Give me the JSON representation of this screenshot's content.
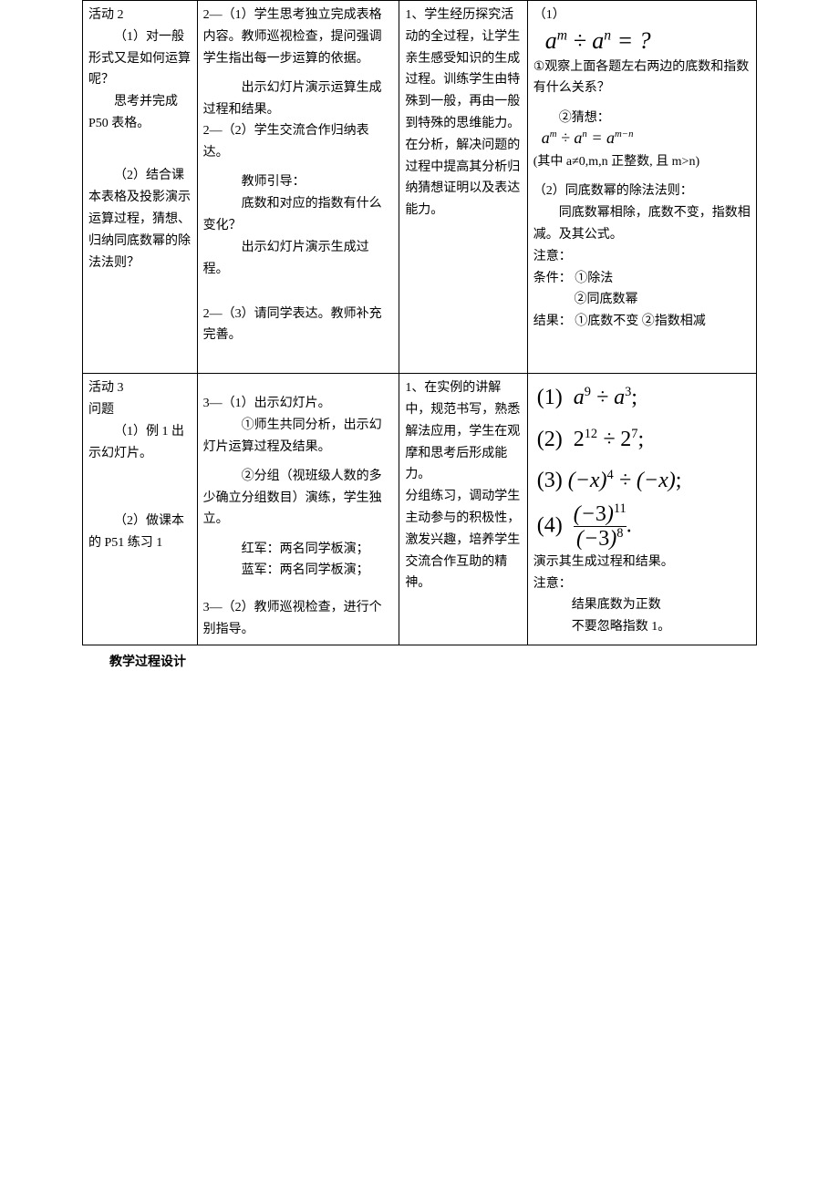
{
  "table": {
    "rows": [
      {
        "c1": {
          "lines": [
            {
              "t": "活动 2",
              "cls": ""
            },
            {
              "t": "（1）对一般形式又是如何运算呢？",
              "cls": "indent"
            },
            {
              "t": "思考并完成P50 表格。",
              "cls": "indent"
            },
            {
              "t": "",
              "cls": "sp"
            },
            {
              "t": "",
              "cls": "sp"
            },
            {
              "t": "",
              "cls": "sp"
            },
            {
              "t": "（2）结合课本表格及投影演示运算过程，猜想、归纳同底数幂的除法法则？",
              "cls": "indent"
            }
          ]
        },
        "c2": {
          "lines": [
            {
              "t": "2—（1）学生思考独立完成表格内容。教师巡视检查，提问强调学生指出每一步运算的依据。",
              "cls": ""
            },
            {
              "t": "",
              "cls": "sp"
            },
            {
              "t": "出示幻灯片演示运算生成过程和结果。",
              "cls": "indent3"
            },
            {
              "t": "2—（2）学生交流合作归纳表达。",
              "cls": ""
            },
            {
              "t": "",
              "cls": "sp"
            },
            {
              "t": "教师引导：",
              "cls": "indent3"
            },
            {
              "t": "底数和对应的指数有什么变化？",
              "cls": "indent3"
            },
            {
              "t": "出示幻灯片演示生成过程。",
              "cls": "indent3"
            },
            {
              "t": "",
              "cls": "sp"
            },
            {
              "t": "",
              "cls": "sp"
            },
            {
              "t": "2—（3）请同学表达。教师补充完善。",
              "cls": ""
            }
          ]
        },
        "c3": {
          "lines": [
            {
              "t": "1、学生经历探究活动的全过程，让学生亲生感受知识的生成过程。训练学生由特殊到一般，再由一般到特殊的思维能力。在分析，解决问题的过程中提高其分析归纳猜想证明以及表达能力。",
              "cls": ""
            }
          ]
        },
        "c4": {
          "kind": "row1",
          "eq1_label": "（1）",
          "eq1": "a^m ÷ a^n = ?",
          "obs": "①观察上面各题左右两边的底数和指数有什么关系？",
          "guess_label": "②猜想：",
          "eq2": "a^m ÷ a^n = a^(m−n)",
          "cond": "(其中 a≠0,m,n 正整数, 且 m>n)",
          "rule_title": "（2）同底数幂的除法法则：",
          "rule_body": "同底数幂相除，底数不变，指数相减。及其公式。",
          "note_title": "注意：",
          "note1": "条件： ①除法",
          "note1b": "②同底数幂",
          "note2": "结果： ①底数不变    ②指数相减"
        }
      },
      {
        "c1": {
          "lines": [
            {
              "t": "活动 3",
              "cls": ""
            },
            {
              "t": "问题",
              "cls": ""
            },
            {
              "t": "（1）例 1 出示幻灯片。",
              "cls": "indent"
            },
            {
              "t": "",
              "cls": "sp"
            },
            {
              "t": "",
              "cls": "sp"
            },
            {
              "t": "",
              "cls": "sp"
            },
            {
              "t": "",
              "cls": "sp"
            },
            {
              "t": "",
              "cls": "sp"
            },
            {
              "t": "（2）做课本的 P51 练习 1",
              "cls": "indent"
            }
          ]
        },
        "c2": {
          "lines": [
            {
              "t": "",
              "cls": "sp"
            },
            {
              "t": "3—（1）出示幻灯片。",
              "cls": ""
            },
            {
              "t": "①师生共同分析，出示幻灯片运算过程及结果。",
              "cls": "indent3"
            },
            {
              "t": "",
              "cls": "sp"
            },
            {
              "t": "②分组（视班级人数的多少确立分组数目）演练，学生独立。",
              "cls": "indent3"
            },
            {
              "t": "",
              "cls": "sp"
            },
            {
              "t": "红军：两名同学板演；",
              "cls": "indent3"
            },
            {
              "t": "蓝军：两名同学板演；",
              "cls": "indent3"
            },
            {
              "t": "",
              "cls": "sp"
            },
            {
              "t": "",
              "cls": "sp"
            },
            {
              "t": "3—（2）教师巡视检查，进行个别指导。",
              "cls": ""
            }
          ]
        },
        "c3": {
          "lines": [
            {
              "t": "1、在实例的讲解中，规范书写，熟悉解法应用，学生在观摩和思考后形成能力。",
              "cls": ""
            },
            {
              "t": "分组练习，调动学生主动参与的积极性，激发兴趣，培养学生交流合作互助的精神。",
              "cls": ""
            }
          ]
        },
        "c4": {
          "kind": "row2",
          "items": [
            "(1)  a⁹ ÷ a³;",
            "(2)  2¹² ÷ 2⁷;",
            "(3) (−x)⁴ ÷ (−x);",
            "(4)  (−3)¹¹ / (−3)⁸."
          ],
          "after1": "演示其生成过程和结果。",
          "after2": "注意：",
          "after3": "结果底数为正数",
          "after4": "不要忽略指数 1。"
        }
      }
    ]
  },
  "footer": "教学过程设计"
}
